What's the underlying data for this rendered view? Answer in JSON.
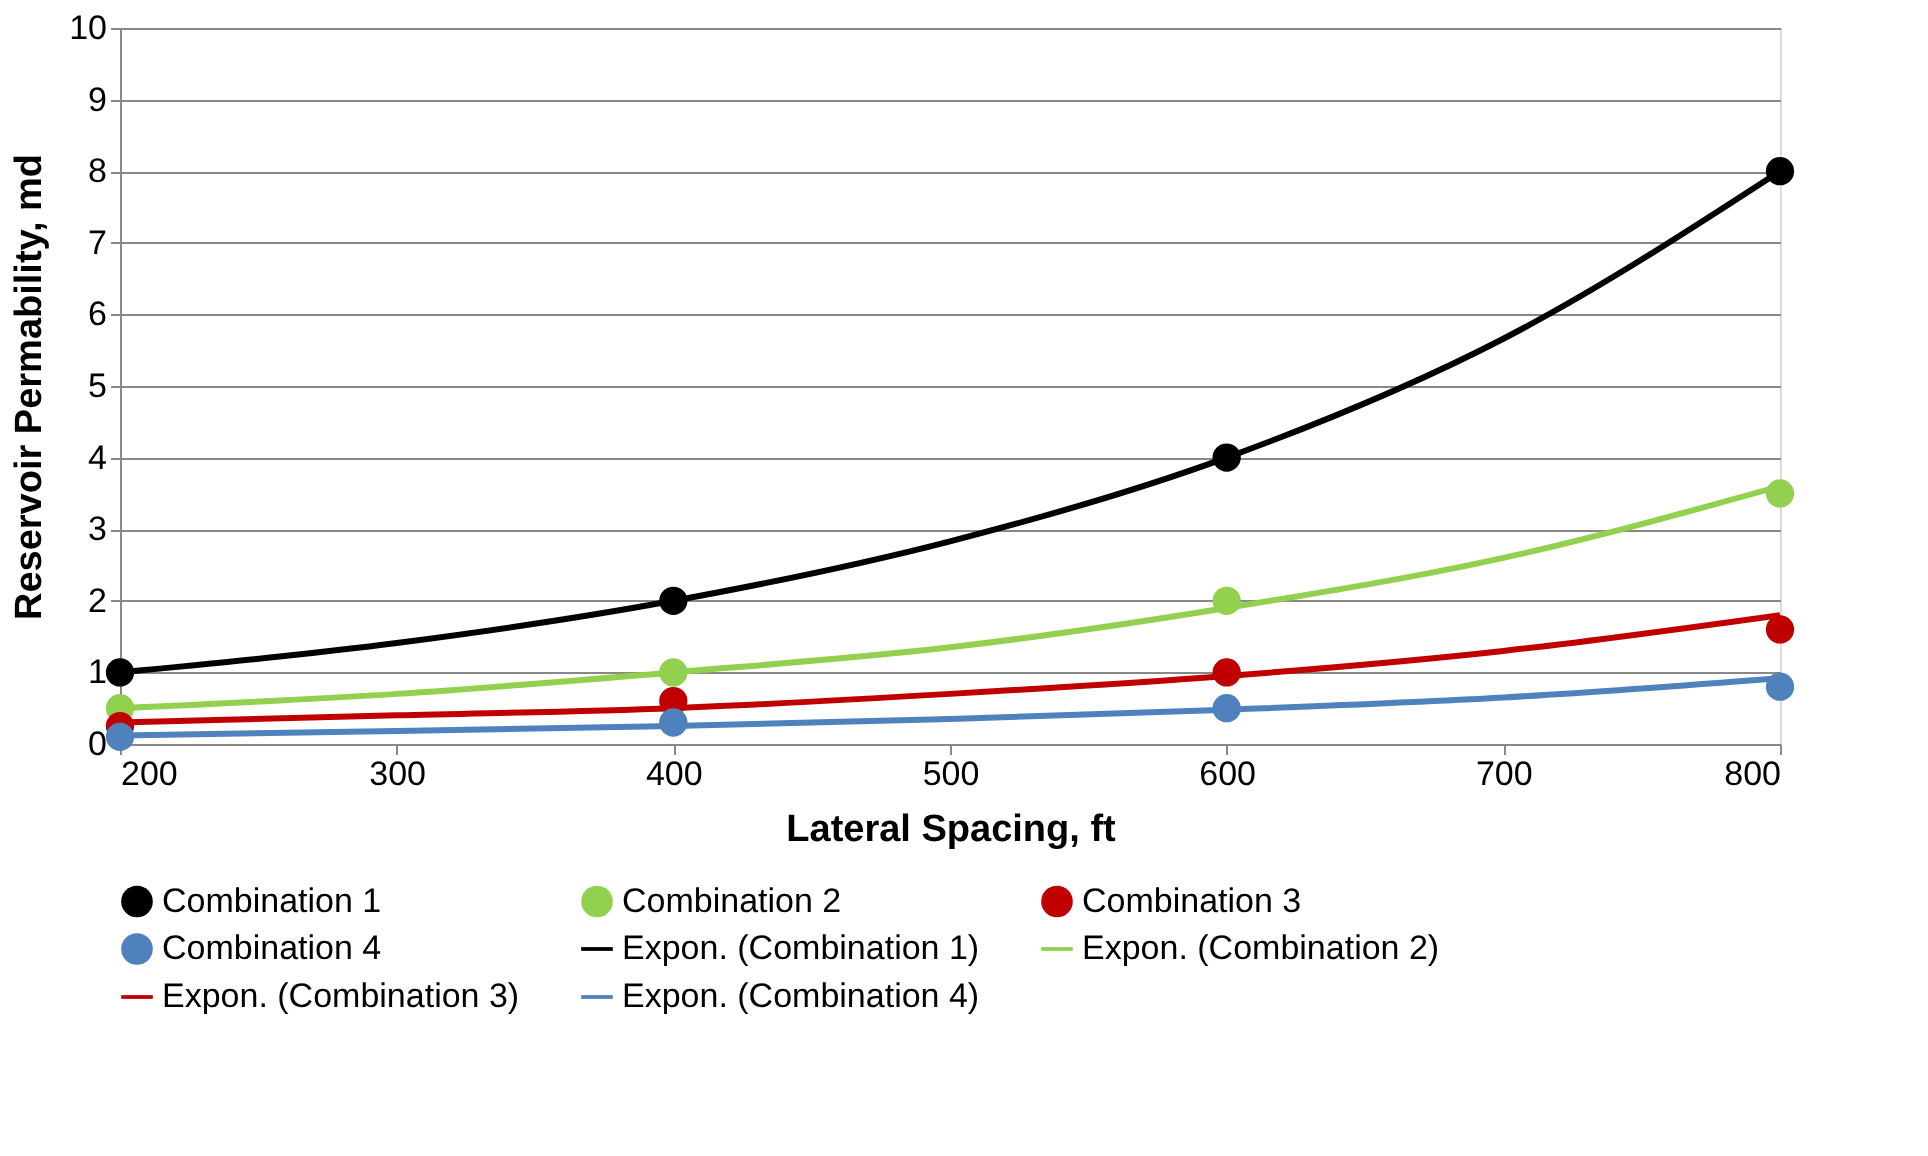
{
  "chart_data": {
    "type": "scatter",
    "xlabel": "Lateral Spacing, ft",
    "ylabel": "Reservoir Permability, md",
    "xlim": [
      200,
      800
    ],
    "xticks": [
      200,
      300,
      400,
      500,
      600,
      700,
      800
    ],
    "ylim": [
      0,
      10
    ],
    "yticks": [
      0,
      1,
      2,
      3,
      4,
      5,
      6,
      7,
      8,
      9,
      10
    ],
    "grid": "y",
    "legend": "bottom",
    "series": [
      {
        "name": "Combination 1",
        "marker": "circle",
        "color": "#000000",
        "x": [
          200,
          400,
          600,
          800
        ],
        "values": [
          1,
          2,
          4,
          8
        ]
      },
      {
        "name": "Combination 2",
        "marker": "circle",
        "color": "#92d050",
        "x": [
          200,
          400,
          600,
          800
        ],
        "values": [
          0.5,
          1,
          2,
          3.5
        ]
      },
      {
        "name": "Combination 3",
        "marker": "circle",
        "color": "#c00000",
        "x": [
          200,
          400,
          600,
          800
        ],
        "values": [
          0.25,
          0.6,
          1,
          1.6
        ]
      },
      {
        "name": "Combination 4",
        "marker": "circle",
        "color": "#4f81bd",
        "x": [
          200,
          400,
          600,
          800
        ],
        "values": [
          0.1,
          0.3,
          0.5,
          0.8
        ]
      },
      {
        "name": "Expon. (Combination 1)",
        "type": "line",
        "marker": "none",
        "line_style": "solid",
        "color": "#000000",
        "x": [
          200,
          300,
          400,
          500,
          600,
          700,
          800
        ],
        "values": [
          1,
          1.41,
          2,
          2.83,
          4,
          5.66,
          8
        ]
      },
      {
        "name": "Expon. (Combination 2)",
        "type": "line",
        "marker": "none",
        "line_style": "solid",
        "color": "#92d050",
        "x": [
          200,
          300,
          400,
          500,
          600,
          700,
          800
        ],
        "values": [
          0.5,
          0.7,
          1,
          1.35,
          1.9,
          2.6,
          3.6
        ]
      },
      {
        "name": "Expon. (Combination 3)",
        "type": "line",
        "marker": "none",
        "line_style": "solid",
        "color": "#c00000",
        "x": [
          200,
          300,
          400,
          500,
          600,
          700,
          800
        ],
        "values": [
          0.3,
          0.4,
          0.5,
          0.7,
          0.95,
          1.3,
          1.8
        ]
      },
      {
        "name": "Expon. (Combination 4)",
        "type": "line",
        "marker": "none",
        "line_style": "solid",
        "color": "#4f81bd",
        "x": [
          200,
          300,
          400,
          500,
          600,
          700,
          800
        ],
        "values": [
          0.12,
          0.18,
          0.25,
          0.35,
          0.48,
          0.65,
          0.92
        ]
      }
    ]
  }
}
